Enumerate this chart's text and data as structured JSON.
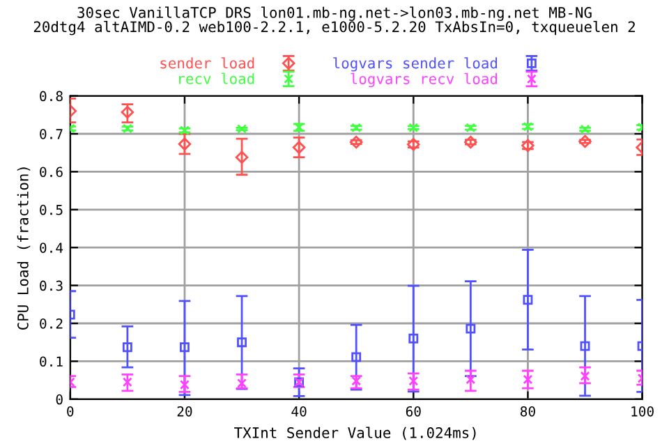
{
  "chart_data": {
    "type": "scatter",
    "title": "30sec VanillaTCP DRS lon01.mb-ng.net->lon03.mb-ng.net MB-NG\n20dtg4 altAIMD-0.2 web100-2.2.1, e1000-5.2.20 TxAbsIn=0, txqueuelen 2",
    "xlabel": "TXInt Sender Value (1.024ms)",
    "ylabel": "CPU Load (fraction)",
    "x": [
      0,
      10,
      20,
      30,
      40,
      50,
      60,
      70,
      80,
      90,
      100
    ],
    "xlim": [
      0,
      100
    ],
    "xticks": [
      0,
      20,
      40,
      60,
      80,
      100
    ],
    "ylim": [
      0,
      0.8
    ],
    "yticks": [
      0,
      0.1,
      0.2,
      0.3,
      0.4,
      0.5,
      0.6,
      0.7,
      0.8
    ],
    "grid": true,
    "legend": "top",
    "series": [
      {
        "name": "sender load",
        "color": "#ff5050",
        "marker": "diamond",
        "values": [
          0.76,
          0.757,
          0.673,
          0.638,
          0.664,
          0.678,
          0.672,
          0.678,
          0.669,
          0.68,
          0.664
        ],
        "errors": [
          [
            0.73,
            0.793
          ],
          [
            0.73,
            0.778
          ],
          [
            0.647,
            0.7
          ],
          [
            0.592,
            0.687
          ],
          [
            0.638,
            0.69
          ],
          [
            0.673,
            0.683
          ],
          [
            0.664,
            0.68
          ],
          [
            0.672,
            0.684
          ],
          [
            0.66,
            0.678
          ],
          [
            0.676,
            0.684
          ],
          [
            0.644,
            0.685
          ]
        ]
      },
      {
        "name": "recv load",
        "color": "#40ff40",
        "marker": "cross",
        "values": [
          0.714,
          0.714,
          0.709,
          0.713,
          0.717,
          0.716,
          0.716,
          0.716,
          0.719,
          0.712,
          0.717
        ],
        "errors": [
          [
            0.709,
            0.719
          ],
          [
            0.709,
            0.719
          ],
          [
            0.704,
            0.714
          ],
          [
            0.71,
            0.716
          ],
          [
            0.708,
            0.726
          ],
          [
            0.711,
            0.721
          ],
          [
            0.712,
            0.72
          ],
          [
            0.711,
            0.721
          ],
          [
            0.713,
            0.725
          ],
          [
            0.708,
            0.716
          ],
          [
            0.711,
            0.723
          ]
        ]
      },
      {
        "name": "logvars sender load",
        "color": "#5050ff",
        "marker": "square",
        "values": [
          0.223,
          0.137,
          0.137,
          0.15,
          0.045,
          0.111,
          0.16,
          0.186,
          0.262,
          0.14,
          0.14
        ],
        "errors": [
          [
            0.162,
            0.285
          ],
          [
            0.084,
            0.192
          ],
          [
            0.011,
            0.259
          ],
          [
            0.027,
            0.272
          ],
          [
            0.008,
            0.081
          ],
          [
            0.025,
            0.196
          ],
          [
            0.02,
            0.299
          ],
          [
            0.061,
            0.311
          ],
          [
            0.131,
            0.394
          ],
          [
            0.009,
            0.272
          ],
          [
            0.019,
            0.262
          ]
        ]
      },
      {
        "name": "logvars recv load",
        "color": "#ff40ff",
        "marker": "cross",
        "values": [
          0.045,
          0.045,
          0.038,
          0.042,
          0.045,
          0.048,
          0.048,
          0.052,
          0.052,
          0.061,
          0.055
        ],
        "errors": [
          [
            0.032,
            0.061
          ],
          [
            0.022,
            0.065
          ],
          [
            0.019,
            0.061
          ],
          [
            0.029,
            0.065
          ],
          [
            0.032,
            0.065
          ],
          [
            0.029,
            0.061
          ],
          [
            0.025,
            0.068
          ],
          [
            0.022,
            0.075
          ],
          [
            0.029,
            0.075
          ],
          [
            0.042,
            0.084
          ],
          [
            0.038,
            0.075
          ]
        ]
      }
    ]
  }
}
